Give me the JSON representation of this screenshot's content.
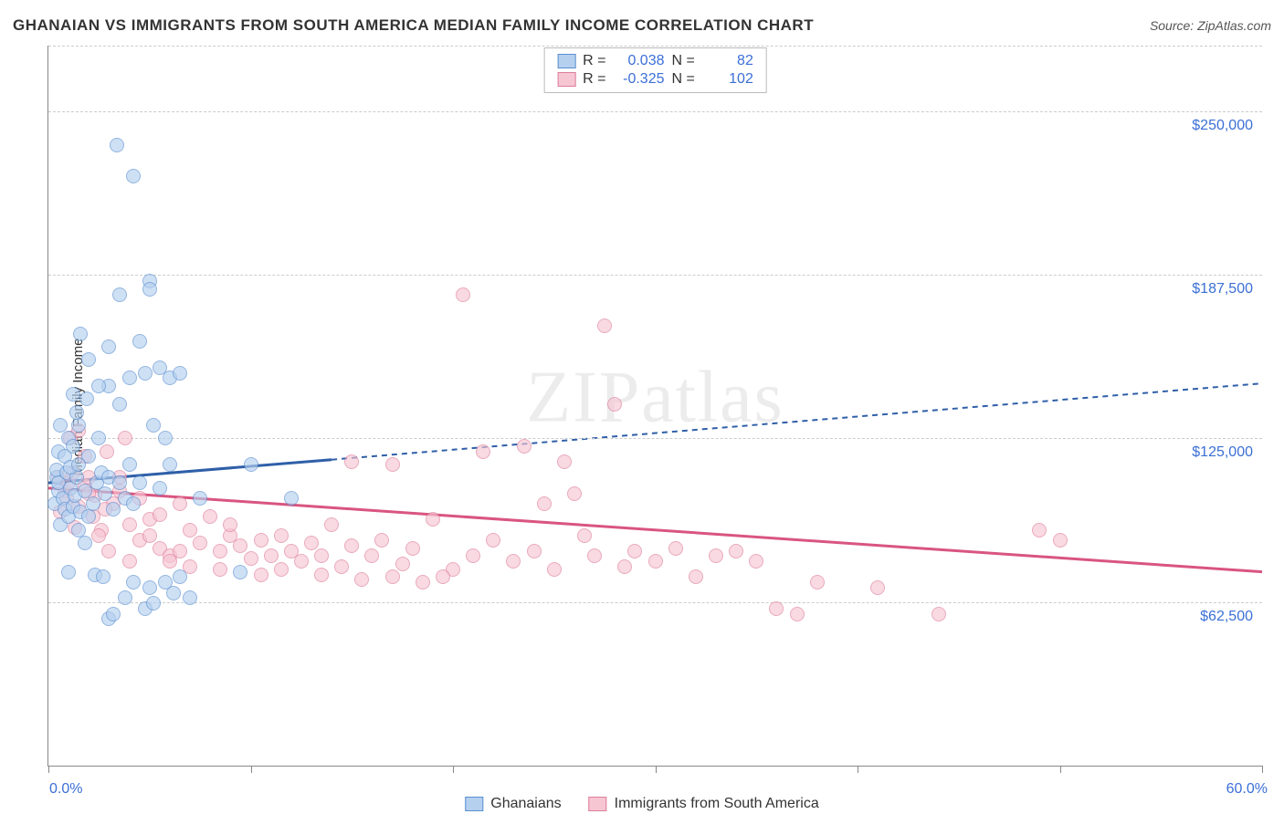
{
  "title": "GHANAIAN VS IMMIGRANTS FROM SOUTH AMERICA MEDIAN FAMILY INCOME CORRELATION CHART",
  "source_prefix": "Source: ",
  "source_name": "ZipAtlas.com",
  "ylabel": "Median Family Income",
  "watermark": "ZIPatlas",
  "chart": {
    "xlim": [
      0,
      60
    ],
    "ylim": [
      0,
      275000
    ],
    "x_min_label": "0.0%",
    "x_max_label": "60.0%",
    "y_gridlines": [
      62500,
      125000,
      187500,
      250000
    ],
    "y_tick_labels": [
      "$62,500",
      "$125,000",
      "$187,500",
      "$250,000"
    ],
    "x_ticks": [
      0,
      10,
      20,
      30,
      40,
      50,
      60
    ],
    "grid_color": "#cccccc",
    "axis_color": "#888888",
    "background_color": "#ffffff",
    "tick_label_color": "#3b6fd6"
  },
  "series": {
    "a": {
      "label": "Ghanaians",
      "fill": "#b5d0ef",
      "stroke": "#5a8fd0",
      "line_color": "#2f5fa8",
      "R_label": "R =",
      "R": "0.038",
      "N_label": "N =",
      "N": "82",
      "regression": {
        "x1": 0,
        "y1": 108000,
        "x2": 60,
        "y2": 146000,
        "solid_until_x": 14
      },
      "points": [
        [
          0.3,
          100000
        ],
        [
          0.4,
          110000
        ],
        [
          0.5,
          105000
        ],
        [
          0.6,
          92000
        ],
        [
          0.4,
          113000
        ],
        [
          0.5,
          120000
        ],
        [
          0.7,
          102000
        ],
        [
          0.8,
          98000
        ],
        [
          0.5,
          108000
        ],
        [
          0.9,
          112000
        ],
        [
          1.0,
          95000
        ],
        [
          1.1,
          106000
        ],
        [
          1.2,
          99000
        ],
        [
          0.8,
          118000
        ],
        [
          1.3,
          103000
        ],
        [
          1.0,
          125000
        ],
        [
          1.4,
          110000
        ],
        [
          1.5,
          90000
        ],
        [
          0.6,
          130000
        ],
        [
          1.1,
          114000
        ],
        [
          1.6,
          97000
        ],
        [
          1.2,
          122000
        ],
        [
          1.8,
          105000
        ],
        [
          1.0,
          74000
        ],
        [
          2.0,
          118000
        ],
        [
          1.5,
          130000
        ],
        [
          2.2,
          100000
        ],
        [
          1.8,
          85000
        ],
        [
          2.4,
          108000
        ],
        [
          2.0,
          95000
        ],
        [
          1.4,
          135000
        ],
        [
          2.6,
          112000
        ],
        [
          2.3,
          73000
        ],
        [
          2.8,
          104000
        ],
        [
          1.9,
          140000
        ],
        [
          3.0,
          110000
        ],
        [
          2.5,
          125000
        ],
        [
          3.2,
          98000
        ],
        [
          2.7,
          72000
        ],
        [
          3.5,
          108000
        ],
        [
          3.0,
          145000
        ],
        [
          3.8,
          102000
        ],
        [
          3.0,
          56000
        ],
        [
          3.2,
          58000
        ],
        [
          4.0,
          115000
        ],
        [
          3.5,
          180000
        ],
        [
          4.2,
          100000
        ],
        [
          3.8,
          64000
        ],
        [
          4.5,
          108000
        ],
        [
          4.0,
          148000
        ],
        [
          4.8,
          60000
        ],
        [
          4.2,
          70000
        ],
        [
          5.0,
          68000
        ],
        [
          4.5,
          162000
        ],
        [
          5.2,
          130000
        ],
        [
          4.8,
          150000
        ],
        [
          5.5,
          106000
        ],
        [
          5.0,
          185000
        ],
        [
          5.8,
          125000
        ],
        [
          5.2,
          62000
        ],
        [
          6.0,
          148000
        ],
        [
          5.5,
          152000
        ],
        [
          6.2,
          66000
        ],
        [
          5.8,
          70000
        ],
        [
          6.5,
          150000
        ],
        [
          6.0,
          115000
        ],
        [
          7.0,
          64000
        ],
        [
          3.4,
          237000
        ],
        [
          4.2,
          225000
        ],
        [
          5.0,
          182000
        ],
        [
          1.6,
          165000
        ],
        [
          2.0,
          155000
        ],
        [
          2.5,
          145000
        ],
        [
          3.0,
          160000
        ],
        [
          3.5,
          138000
        ],
        [
          1.2,
          142000
        ],
        [
          1.5,
          115000
        ],
        [
          6.5,
          72000
        ],
        [
          7.5,
          102000
        ],
        [
          9.5,
          74000
        ],
        [
          10.0,
          115000
        ],
        [
          12.0,
          102000
        ]
      ]
    },
    "b": {
      "label": "Immigrants from South America",
      "fill": "#f6c6d3",
      "stroke": "#de7d9a",
      "line_color": "#d95580",
      "R_label": "R =",
      "R": "-0.325",
      "N_label": "N =",
      "N": "102",
      "regression": {
        "x1": 0,
        "y1": 106000,
        "x2": 60,
        "y2": 74000,
        "solid_until_x": 60
      },
      "points": [
        [
          0.5,
          110000
        ],
        [
          0.8,
          105000
        ],
        [
          1.0,
          108000
        ],
        [
          0.6,
          97000
        ],
        [
          1.2,
          112000
        ],
        [
          0.9,
          102000
        ],
        [
          1.5,
          99000
        ],
        [
          1.1,
          125000
        ],
        [
          1.8,
          107000
        ],
        [
          1.3,
          91000
        ],
        [
          2.0,
          110000
        ],
        [
          1.5,
          128000
        ],
        [
          2.3,
          103000
        ],
        [
          1.8,
          118000
        ],
        [
          2.6,
          90000
        ],
        [
          2.0,
          104000
        ],
        [
          2.9,
          120000
        ],
        [
          2.2,
          95000
        ],
        [
          3.2,
          100000
        ],
        [
          2.5,
          88000
        ],
        [
          3.5,
          110000
        ],
        [
          3.0,
          82000
        ],
        [
          3.8,
          125000
        ],
        [
          2.8,
          98000
        ],
        [
          4.0,
          92000
        ],
        [
          3.5,
          105000
        ],
        [
          4.5,
          86000
        ],
        [
          4.0,
          78000
        ],
        [
          5.0,
          94000
        ],
        [
          4.5,
          102000
        ],
        [
          5.5,
          83000
        ],
        [
          5.0,
          88000
        ],
        [
          6.0,
          80000
        ],
        [
          5.5,
          96000
        ],
        [
          6.5,
          100000
        ],
        [
          6.0,
          78000
        ],
        [
          7.0,
          90000
        ],
        [
          6.5,
          82000
        ],
        [
          7.5,
          85000
        ],
        [
          7.0,
          76000
        ],
        [
          8.0,
          95000
        ],
        [
          8.5,
          82000
        ],
        [
          9.0,
          88000
        ],
        [
          8.5,
          75000
        ],
        [
          9.5,
          84000
        ],
        [
          9.0,
          92000
        ],
        [
          10.0,
          79000
        ],
        [
          10.5,
          86000
        ],
        [
          11.0,
          80000
        ],
        [
          10.5,
          73000
        ],
        [
          11.5,
          88000
        ],
        [
          12.0,
          82000
        ],
        [
          11.5,
          75000
        ],
        [
          12.5,
          78000
        ],
        [
          13.0,
          85000
        ],
        [
          13.5,
          73000
        ],
        [
          14.0,
          92000
        ],
        [
          13.5,
          80000
        ],
        [
          14.5,
          76000
        ],
        [
          15.0,
          84000
        ],
        [
          15.5,
          71000
        ],
        [
          16.0,
          80000
        ],
        [
          16.5,
          86000
        ],
        [
          17.0,
          72000
        ],
        [
          17.5,
          77000
        ],
        [
          18.0,
          83000
        ],
        [
          18.5,
          70000
        ],
        [
          19.0,
          94000
        ],
        [
          20.0,
          75000
        ],
        [
          21.0,
          80000
        ],
        [
          22.0,
          86000
        ],
        [
          21.5,
          120000
        ],
        [
          23.0,
          78000
        ],
        [
          24.0,
          82000
        ],
        [
          25.0,
          75000
        ],
        [
          24.5,
          100000
        ],
        [
          25.5,
          116000
        ],
        [
          26.0,
          104000
        ],
        [
          27.0,
          80000
        ],
        [
          26.5,
          88000
        ],
        [
          28.0,
          138000
        ],
        [
          27.5,
          168000
        ],
        [
          28.5,
          76000
        ],
        [
          29.0,
          82000
        ],
        [
          30.0,
          78000
        ],
        [
          31.0,
          83000
        ],
        [
          32.0,
          72000
        ],
        [
          33.0,
          80000
        ],
        [
          34.0,
          82000
        ],
        [
          35.0,
          78000
        ],
        [
          36.0,
          60000
        ],
        [
          37.0,
          58000
        ],
        [
          38.0,
          70000
        ],
        [
          41.0,
          68000
        ],
        [
          44.0,
          58000
        ],
        [
          49.0,
          90000
        ],
        [
          50.0,
          86000
        ],
        [
          20.5,
          180000
        ],
        [
          17.0,
          115000
        ],
        [
          19.5,
          72000
        ],
        [
          15.0,
          116000
        ],
        [
          23.5,
          122000
        ]
      ]
    }
  }
}
